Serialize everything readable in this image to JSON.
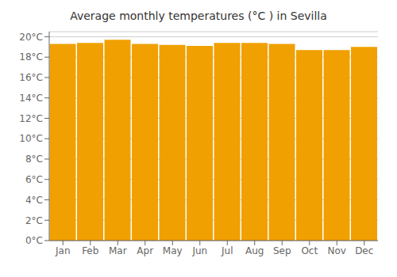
{
  "chart_data": {
    "type": "bar",
    "title": "Average monthly temperatures (°C ) in Sevilla",
    "categories": [
      "Jan",
      "Feb",
      "Mar",
      "Apr",
      "May",
      "Jun",
      "Jul",
      "Aug",
      "Sep",
      "Oct",
      "Nov",
      "Dec"
    ],
    "values": [
      19.3,
      19.4,
      19.7,
      19.3,
      19.2,
      19.1,
      19.4,
      19.4,
      19.3,
      18.7,
      18.7,
      19.0
    ],
    "color": "#F0A000",
    "ylim": [
      0,
      20.5
    ],
    "yticks": [
      {
        "value": 0,
        "label": "0°C"
      },
      {
        "value": 2,
        "label": "2°C"
      },
      {
        "value": 4,
        "label": "4°C"
      },
      {
        "value": 6,
        "label": "6°C"
      },
      {
        "value": 8,
        "label": "8°C"
      },
      {
        "value": 10,
        "label": "10°C"
      },
      {
        "value": 12,
        "label": "12°C"
      },
      {
        "value": 14,
        "label": "14°C"
      },
      {
        "value": 16,
        "label": "16°C"
      },
      {
        "value": 18,
        "label": "18°C"
      },
      {
        "value": 20,
        "label": "20°C"
      }
    ],
    "grid": true
  }
}
